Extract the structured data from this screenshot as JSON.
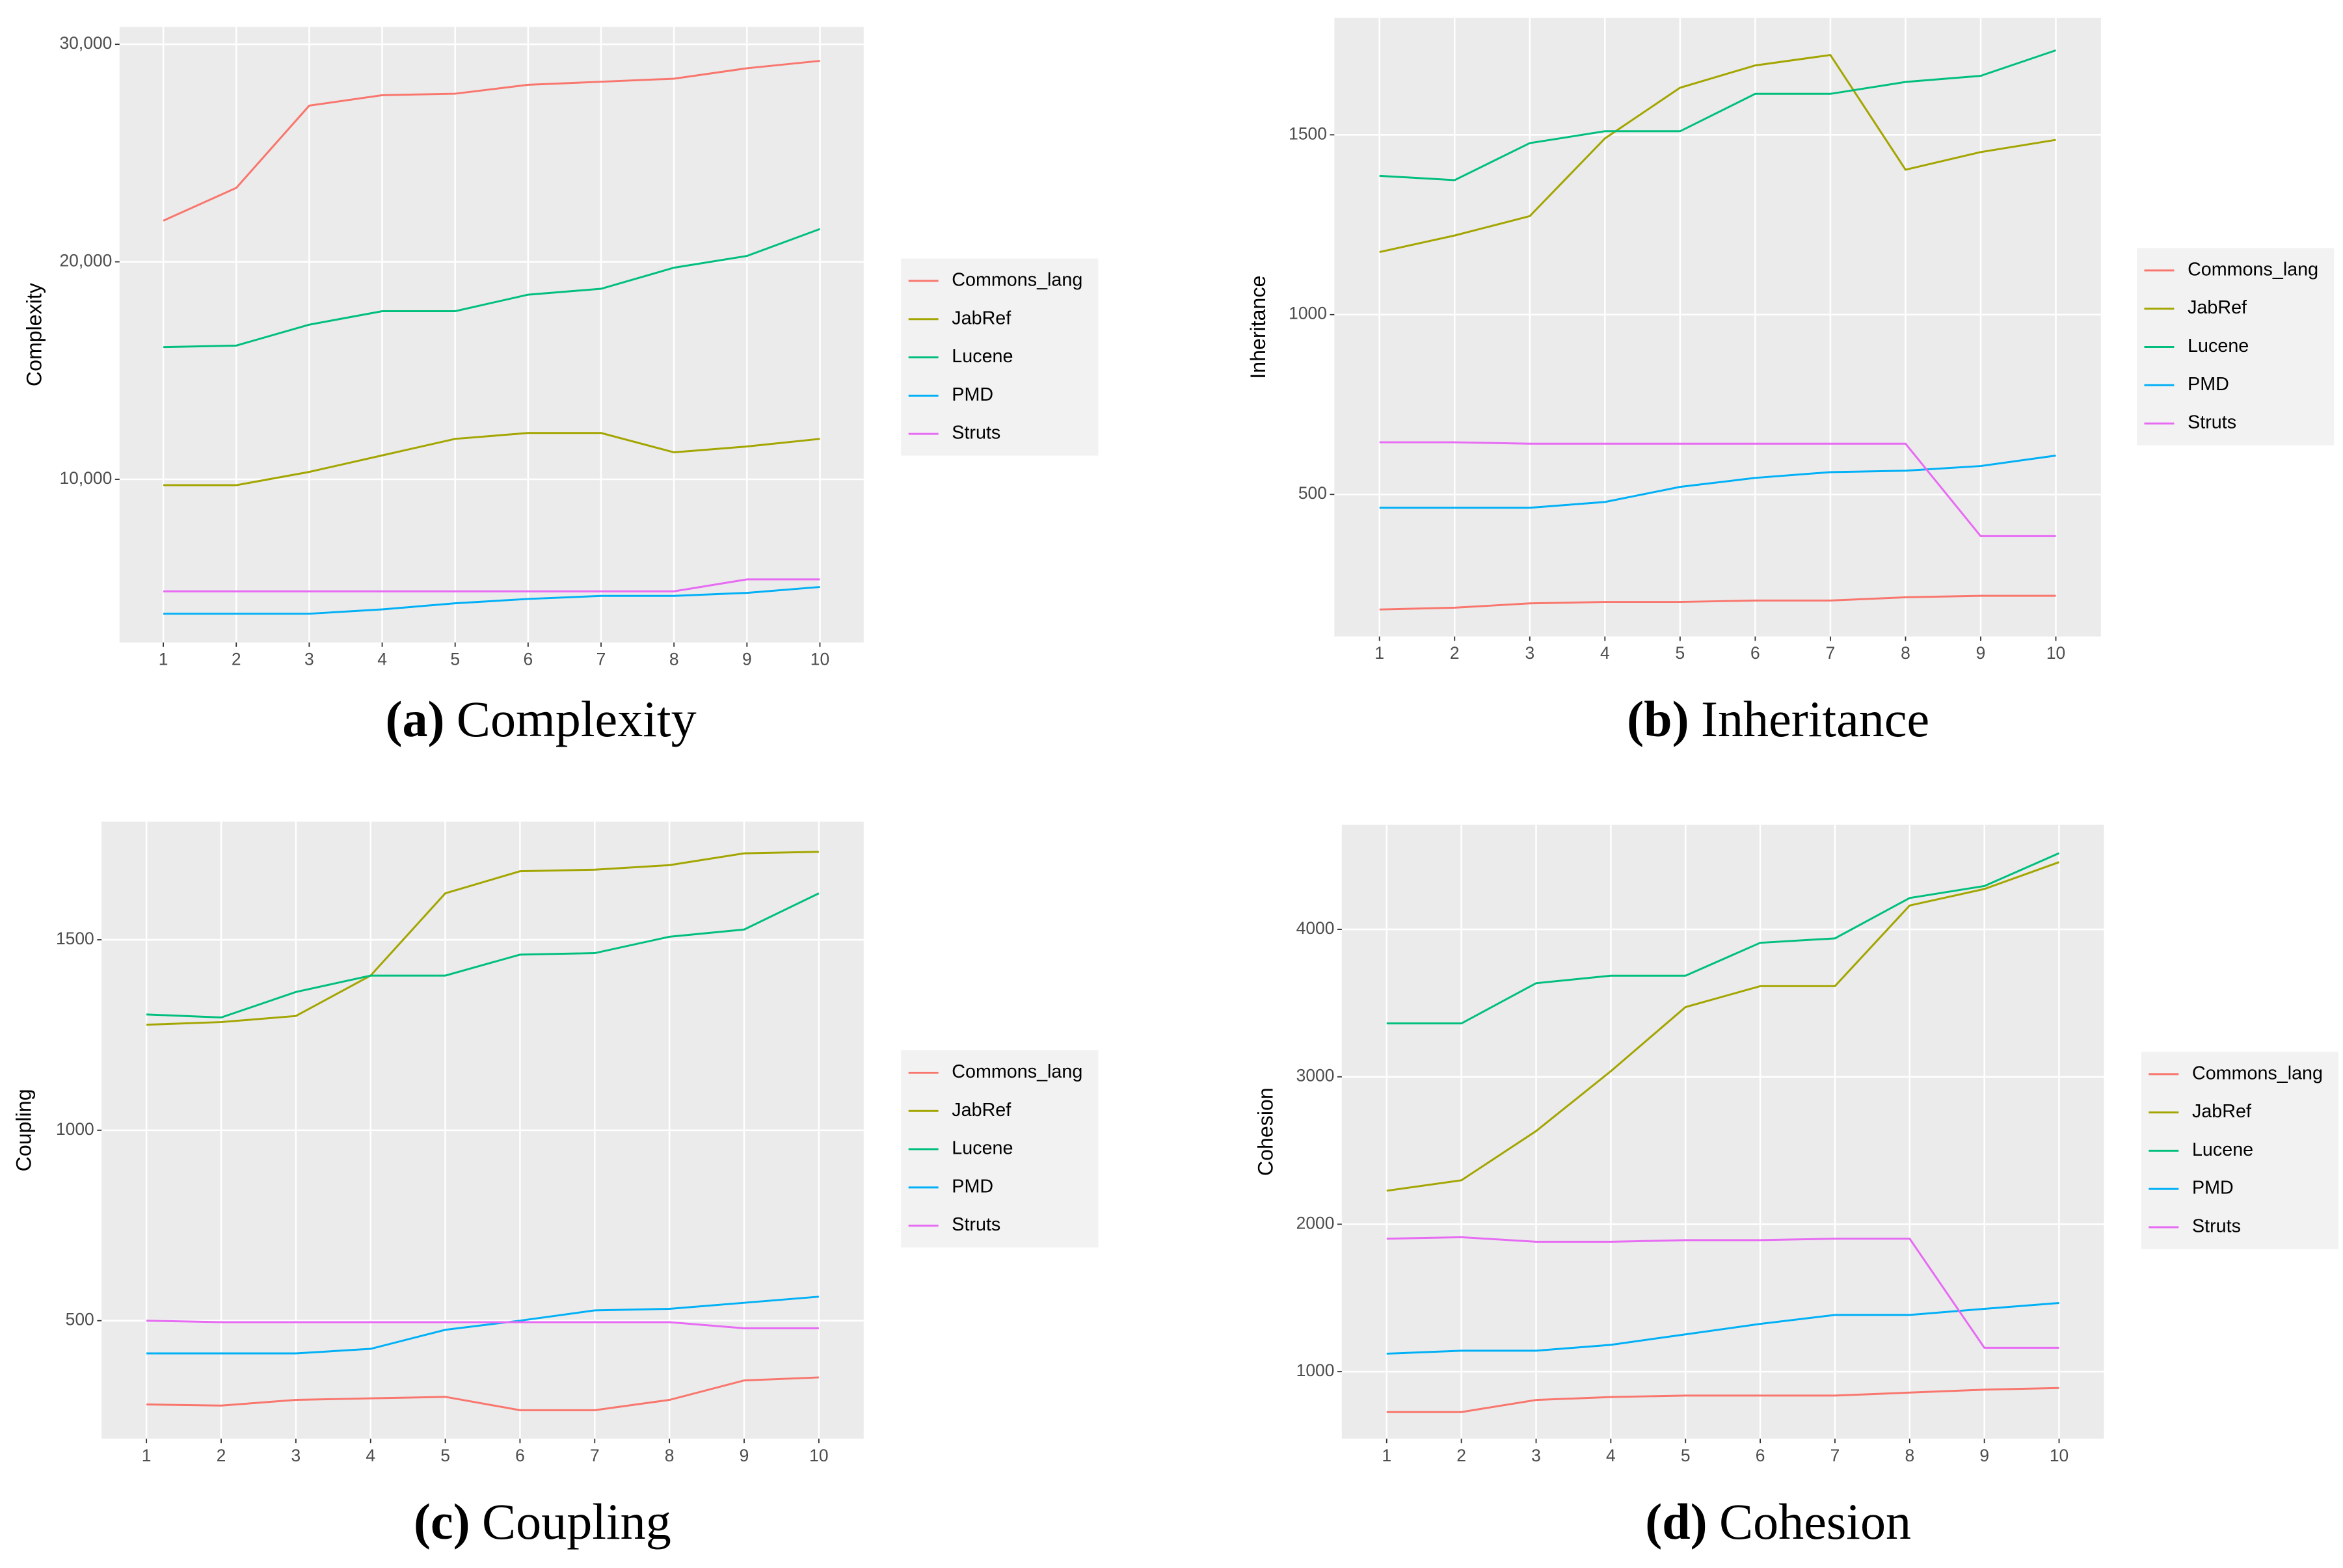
{
  "chart_data": [
    {
      "type": "line",
      "y_label": "Complexity",
      "caption_label": "(a)",
      "caption": "Complexity",
      "x": [
        1,
        2,
        3,
        4,
        5,
        6,
        7,
        8,
        9,
        10
      ],
      "xlim": [
        0.4,
        10.6
      ],
      "xticks": [
        1,
        2,
        3,
        4,
        5,
        6,
        7,
        8,
        9,
        10
      ],
      "ylim": [
        2500,
        30800
      ],
      "yticks": [
        {
          "value": 10000,
          "label": "10,000"
        },
        {
          "value": 20000,
          "label": "20,000"
        },
        {
          "value": 30000,
          "label": "30,000"
        }
      ],
      "grid": true,
      "legend": "right",
      "series": [
        {
          "name": "Commons_lang",
          "color": "#F8766D",
          "values": [
            21890,
            23400,
            27180,
            27660,
            27730,
            28140,
            28280,
            28420,
            28900,
            29240
          ]
        },
        {
          "name": "JabRef",
          "color": "#A3A500",
          "values": [
            9730,
            9730,
            10340,
            11100,
            11860,
            12130,
            12130,
            11240,
            11510,
            11860
          ]
        },
        {
          "name": "Lucene",
          "color": "#00BF7D",
          "values": [
            16080,
            16150,
            17110,
            17730,
            17730,
            18490,
            18760,
            19730,
            20270,
            21510
          ]
        },
        {
          "name": "PMD",
          "color": "#00B0F6",
          "values": [
            3820,
            3820,
            3820,
            4020,
            4300,
            4500,
            4640,
            4640,
            4780,
            5050
          ]
        },
        {
          "name": "Struts",
          "color": "#E76BF3",
          "values": [
            4850,
            4850,
            4850,
            4850,
            4850,
            4850,
            4850,
            4850,
            5400,
            5400
          ]
        }
      ]
    },
    {
      "type": "line",
      "y_label": "Inheritance",
      "caption_label": "(b)",
      "caption": "Inheritance",
      "x": [
        1,
        2,
        3,
        4,
        5,
        6,
        7,
        8,
        9,
        10
      ],
      "xlim": [
        0.4,
        10.6
      ],
      "xticks": [
        1,
        2,
        3,
        4,
        5,
        6,
        7,
        8,
        9,
        10
      ],
      "ylim": [
        105,
        1825
      ],
      "yticks": [
        500,
        1000,
        1500
      ],
      "grid": true,
      "legend": "right",
      "series": [
        {
          "name": "Commons_lang",
          "color": "#F8766D",
          "values": [
            180,
            185,
            197,
            201,
            201,
            205,
            205,
            214,
            218,
            218
          ]
        },
        {
          "name": "JabRef",
          "color": "#A3A500",
          "values": [
            1174,
            1220,
            1274,
            1490,
            1631,
            1693,
            1722,
            1403,
            1452,
            1486
          ]
        },
        {
          "name": "Lucene",
          "color": "#00BF7D",
          "values": [
            1386,
            1374,
            1477,
            1510,
            1510,
            1614,
            1614,
            1647,
            1664,
            1735
          ]
        },
        {
          "name": "PMD",
          "color": "#00B0F6",
          "values": [
            463,
            463,
            463,
            479,
            521,
            546,
            562,
            566,
            579,
            608
          ]
        },
        {
          "name": "Struts",
          "color": "#E76BF3",
          "values": [
            645,
            645,
            641,
            641,
            641,
            641,
            641,
            641,
            384,
            384
          ]
        }
      ]
    },
    {
      "type": "line",
      "y_label": "Coupling",
      "caption_label": "(c)",
      "caption": "Coupling",
      "x": [
        1,
        2,
        3,
        4,
        5,
        6,
        7,
        8,
        9,
        10
      ],
      "xlim": [
        0.4,
        10.6
      ],
      "xticks": [
        1,
        2,
        3,
        4,
        5,
        6,
        7,
        8,
        9,
        10
      ],
      "ylim": [
        190,
        1810
      ],
      "yticks": [
        500,
        1000,
        1500
      ],
      "grid": true,
      "legend": "right",
      "series": [
        {
          "name": "Commons_lang",
          "color": "#F8766D",
          "values": [
            280,
            277,
            292,
            296,
            300,
            265,
            265,
            292,
            343,
            351
          ]
        },
        {
          "name": "JabRef",
          "color": "#A3A500",
          "values": [
            1277,
            1284,
            1300,
            1406,
            1622,
            1680,
            1684,
            1696,
            1727,
            1731
          ]
        },
        {
          "name": "Lucene",
          "color": "#00BF7D",
          "values": [
            1304,
            1296,
            1363,
            1406,
            1406,
            1461,
            1465,
            1508,
            1527,
            1622
          ]
        },
        {
          "name": "PMD",
          "color": "#00B0F6",
          "values": [
            414,
            414,
            414,
            426,
            476,
            500,
            527,
            531,
            547,
            563
          ]
        },
        {
          "name": "Struts",
          "color": "#E76BF3",
          "values": [
            500,
            496,
            496,
            496,
            496,
            496,
            496,
            496,
            480,
            480
          ]
        }
      ]
    },
    {
      "type": "line",
      "y_label": "Cohesion",
      "caption_label": "(d)",
      "caption": "Cohesion",
      "x": [
        1,
        2,
        3,
        4,
        5,
        6,
        7,
        8,
        9,
        10
      ],
      "xlim": [
        0.4,
        10.6
      ],
      "xticks": [
        1,
        2,
        3,
        4,
        5,
        6,
        7,
        8,
        9,
        10
      ],
      "ylim": [
        545,
        4710
      ],
      "yticks": [
        1000,
        2000,
        3000,
        4000
      ],
      "grid": true,
      "legend": "right",
      "series": [
        {
          "name": "Commons_lang",
          "color": "#F8766D",
          "values": [
            726,
            726,
            808,
            828,
            838,
            838,
            838,
            858,
            878,
            889
          ]
        },
        {
          "name": "JabRef",
          "color": "#A3A500",
          "values": [
            2227,
            2298,
            2632,
            3038,
            3473,
            3615,
            3615,
            4162,
            4274,
            4456
          ]
        },
        {
          "name": "Lucene",
          "color": "#00BF7D",
          "values": [
            3362,
            3362,
            3635,
            3686,
            3686,
            3909,
            3939,
            4213,
            4294,
            4517
          ]
        },
        {
          "name": "PMD",
          "color": "#00B0F6",
          "values": [
            1122,
            1142,
            1142,
            1182,
            1253,
            1324,
            1385,
            1385,
            1426,
            1466
          ]
        },
        {
          "name": "Struts",
          "color": "#E76BF3",
          "values": [
            1902,
            1912,
            1881,
            1881,
            1892,
            1892,
            1902,
            1902,
            1162,
            1162
          ]
        }
      ]
    }
  ]
}
